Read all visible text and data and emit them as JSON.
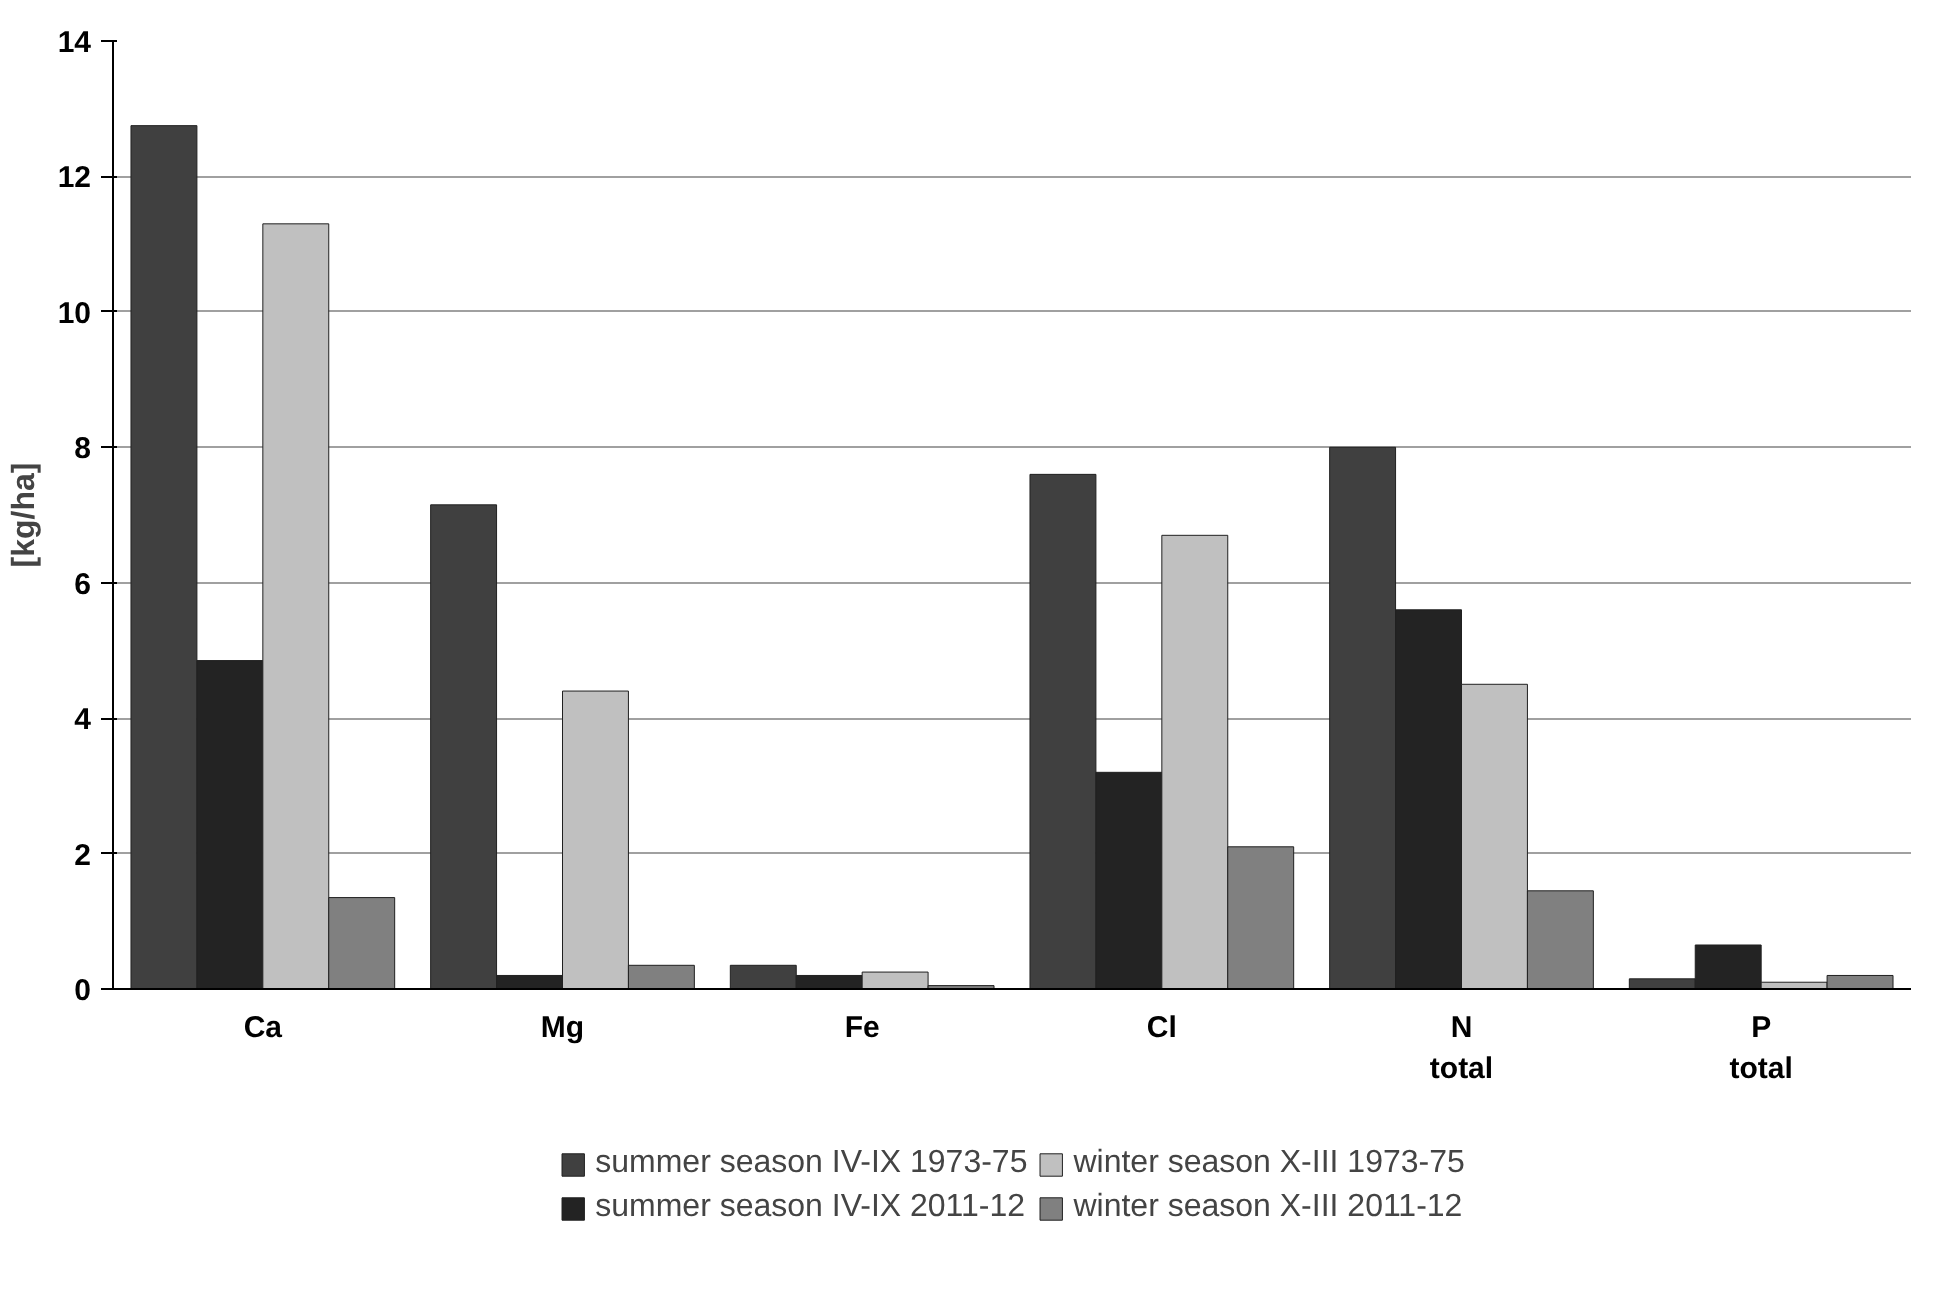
{
  "chart_data": {
    "type": "bar",
    "ylabel": "[kg/ha]",
    "categories": [
      "Ca",
      "Mg",
      "Fe",
      "Cl",
      "N\ntotal",
      "P\ntotal"
    ],
    "series": [
      {
        "name": "summer season IV-IX 1973-75",
        "color": "#404040",
        "values": [
          12.75,
          7.15,
          0.35,
          7.6,
          8.0,
          0.15
        ]
      },
      {
        "name": "summer season IV-IX 2011-12",
        "color": "#232323",
        "values": [
          4.85,
          0.2,
          0.2,
          3.2,
          5.6,
          0.65
        ]
      },
      {
        "name": "winter season X-III 1973-75",
        "color": "#c0c0c0",
        "values": [
          11.3,
          4.4,
          0.25,
          6.7,
          4.5,
          0.1
        ]
      },
      {
        "name": "winter season X-III 2011-12",
        "color": "#808080",
        "values": [
          1.35,
          0.35,
          0.05,
          2.1,
          1.45,
          0.2
        ]
      }
    ],
    "ylim": [
      0,
      14
    ],
    "yticks": [
      0,
      2,
      4,
      6,
      8,
      10,
      12,
      14
    ],
    "grid": "y",
    "legend": "bottom"
  }
}
